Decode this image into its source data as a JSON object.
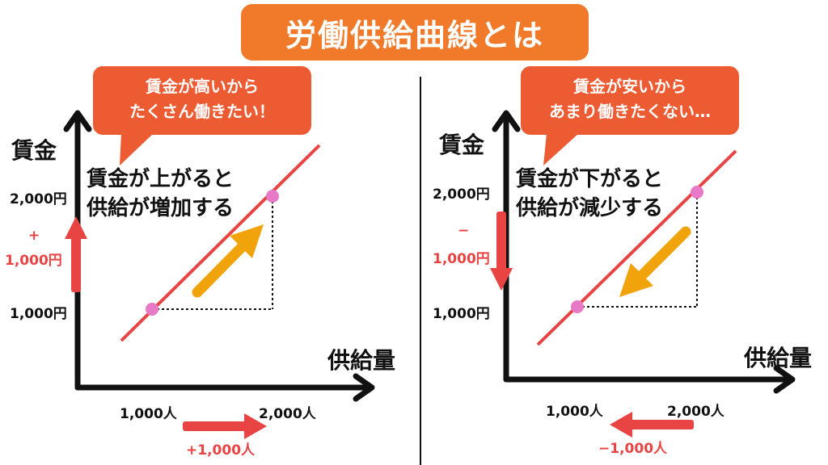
{
  "title": "労働供給曲線とは",
  "left": {
    "bubble_line1": "賃金が高いから",
    "bubble_line2": "たくさん働きたい！",
    "y_axis_label": "賃金",
    "x_axis_label": "供給量",
    "desc_line1": "賃金が上がると",
    "desc_line2": "供給が増加する",
    "y_tick_high": "2,000円",
    "y_tick_low": "1,000円",
    "y_change_sign": "+",
    "y_change_value": "1,000円",
    "x_tick_low": "1,000人",
    "x_tick_high": "2,000人",
    "x_change": "+1,000人"
  },
  "right": {
    "bubble_line1": "賃金が安いから",
    "bubble_line2": "あまり働きたくない…",
    "y_axis_label": "賃金",
    "x_axis_label": "供給量",
    "desc_line1": "賃金が下がると",
    "desc_line2": "供給が減少する",
    "y_tick_high": "2,000円",
    "y_tick_low": "1,000円",
    "y_change_sign": "−",
    "y_change_value": "1,000円",
    "x_tick_low": "1,000人",
    "x_tick_high": "2,000人",
    "x_change": "−1,000人"
  },
  "colors": {
    "title_bg": "#f07a29",
    "bubble_bg": "#ec5b32",
    "supply_line": "#e84444",
    "point": "#e879c6",
    "movement_arrow": "#f0a30a",
    "change_arrow": "#e84444"
  }
}
